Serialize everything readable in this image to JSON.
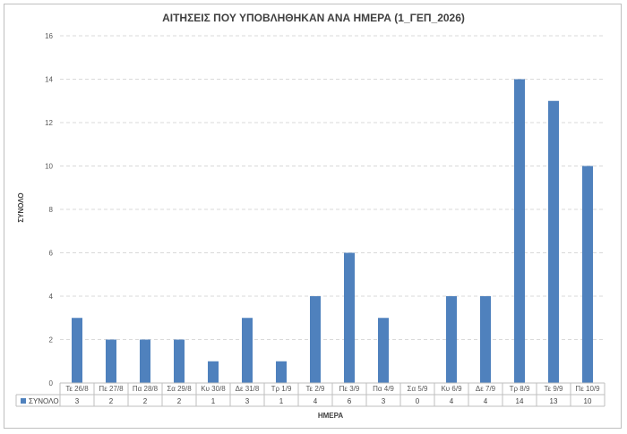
{
  "chart_data": {
    "type": "bar",
    "title": "ΑΙΤΗΣΕΙΣ ΠΟΥ ΥΠΟΒΛΗΘΗΚΑΝ ΑΝΑ ΗΜΕΡΑ (1_ΓΕΠ_2026)",
    "xlabel": "ΗΜΕΡΑ",
    "ylabel": "ΣΥΝΟΛΟ",
    "ylim": [
      0,
      16
    ],
    "yticks": [
      "0",
      "2",
      "4",
      "6",
      "8",
      "10",
      "12",
      "14",
      "16"
    ],
    "categories": [
      "Τε 26/8",
      "Πε 27/8",
      "Πα 28/8",
      "Σα 29/8",
      "Κυ 30/8",
      "Δε 31/8",
      "Τρ 1/9",
      "Τε 2/9",
      "Πε 3/9",
      "Πα 4/9",
      "Σα 5/9",
      "Κυ 6/9",
      "Δε 7/9",
      "Τρ 8/9",
      "Τε 9/9",
      "Πε 10/9"
    ],
    "series": [
      {
        "name": "ΣΥΝΟΛΟ",
        "values": [
          3,
          2,
          2,
          2,
          1,
          3,
          1,
          4,
          6,
          3,
          0,
          4,
          4,
          14,
          13,
          10
        ],
        "color": "#4f81bd"
      }
    ],
    "grid": true,
    "legend": "data-table-left",
    "data_table": true
  }
}
